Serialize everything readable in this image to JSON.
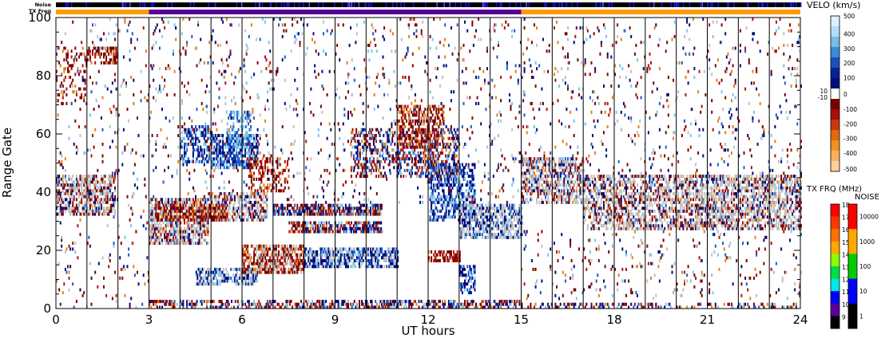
{
  "chart_data": {
    "type": "heatmap",
    "title": "",
    "xlabel": "UT hours",
    "ylabel": "Range Gate",
    "xlim": [
      0,
      24
    ],
    "ylim": [
      0,
      100
    ],
    "x_ticks": [
      0,
      3,
      6,
      9,
      12,
      15,
      18,
      21,
      24
    ],
    "x_tick_labels": [
      "0",
      "3",
      "6",
      "9",
      "12",
      "15",
      "18",
      "21",
      "24"
    ],
    "y_ticks": [
      0,
      20,
      40,
      60,
      80,
      100
    ],
    "y_tick_labels": [
      "0",
      "20",
      "40",
      "60",
      "80",
      "100"
    ],
    "vertical_gridlines_ut": [
      1,
      2,
      3,
      4,
      5,
      6,
      7,
      8,
      9,
      10,
      11,
      12,
      13,
      14,
      15,
      16,
      17,
      18,
      19,
      20,
      21,
      22,
      23
    ],
    "strip_labels": {
      "noise": "Noise",
      "tx_freq": "TX Freq"
    },
    "tx_freq_segments": [
      {
        "start": 0,
        "end": 3,
        "color": "#ff9900"
      },
      {
        "start": 3,
        "end": 15,
        "color": "#5a009a"
      },
      {
        "start": 15,
        "end": 24,
        "color": "#ff9900"
      }
    ],
    "noise_strip_color": "#000000",
    "velocity_colorbar": {
      "title": "VELO (km/s)",
      "tick_labels": [
        "500",
        "400",
        "300",
        "200",
        "100",
        "10",
        "0",
        "-10",
        "-100",
        "-200",
        "-300",
        "-400",
        "-500"
      ],
      "colors_top_to_bottom": [
        "#e0f0ff",
        "#b8dcf8",
        "#78bce8",
        "#3a8ad6",
        "#1a52b8",
        "#0a2096",
        "#00107a",
        "#ffffff",
        "#7a0000",
        "#a80e0e",
        "#c83810",
        "#e06a08",
        "#f29020",
        "#f8b060",
        "#fcd0a0"
      ]
    },
    "txfreq_colorbar": {
      "title": "TX FRQ (MHz)",
      "tick_labels": [
        "18",
        "17",
        "16",
        "15",
        "14",
        "13",
        "12",
        "11",
        "10",
        "9"
      ],
      "colors_top_to_bottom": [
        "#ff0000",
        "#ff3800",
        "#ff7000",
        "#ffa800",
        "#88ff00",
        "#00dd44",
        "#00e8e8",
        "#0000ff",
        "#5a009a",
        "#000000"
      ]
    },
    "noise_colorbar": {
      "title": "NOISE",
      "tick_labels": [
        "10000",
        "1000",
        "100",
        "10",
        "1"
      ],
      "colors_top_to_bottom": [
        "#ff0000",
        "#ffa800",
        "#00cc00",
        "#0000ff",
        "#000000"
      ]
    },
    "colors": {
      "ground_scatter": "#c0c0c0",
      "dark_blue": "#000c7c",
      "mid_blue": "#1c5cc8",
      "light_blue": "#7cc4ec",
      "dark_red": "#7a0000",
      "red": "#b01010",
      "orange": "#e08020"
    },
    "scatter_regions": [
      {
        "t0": 0.0,
        "t1": 1.9,
        "g0": 32,
        "g1": 46,
        "kind": "ground_mixed",
        "density": 0.55
      },
      {
        "t0": 1.0,
        "t1": 2.0,
        "g0": 84,
        "g1": 90,
        "kind": "red",
        "density": 0.45
      },
      {
        "t0": 0.0,
        "t1": 1.0,
        "g0": 70,
        "g1": 90,
        "kind": "red",
        "density": 0.18
      },
      {
        "t0": 3.0,
        "t1": 4.9,
        "g0": 22,
        "g1": 38,
        "kind": "ground_mixed",
        "density": 0.6
      },
      {
        "t0": 4.9,
        "t1": 6.8,
        "g0": 30,
        "g1": 40,
        "kind": "ground_mixed",
        "density": 0.55
      },
      {
        "t0": 3.2,
        "t1": 5.5,
        "g0": 30,
        "g1": 36,
        "kind": "red",
        "density": 0.5
      },
      {
        "t0": 4.0,
        "t1": 5.0,
        "g0": 50,
        "g1": 63,
        "kind": "blue",
        "density": 0.45
      },
      {
        "t0": 5.0,
        "t1": 6.5,
        "g0": 48,
        "g1": 60,
        "kind": "blue",
        "density": 0.6
      },
      {
        "t0": 5.5,
        "t1": 6.3,
        "g0": 55,
        "g1": 68,
        "kind": "light_blue",
        "density": 0.45
      },
      {
        "t0": 6.2,
        "t1": 7.5,
        "g0": 40,
        "g1": 52,
        "kind": "red",
        "density": 0.35
      },
      {
        "t0": 7.0,
        "t1": 10.5,
        "g0": 32,
        "g1": 36,
        "kind": "red_blue",
        "density": 0.7
      },
      {
        "t0": 7.5,
        "t1": 10.5,
        "g0": 26,
        "g1": 30,
        "kind": "red_blue",
        "density": 0.65
      },
      {
        "t0": 4.5,
        "t1": 6.5,
        "g0": 8,
        "g1": 14,
        "kind": "blue_gray",
        "density": 0.55
      },
      {
        "t0": 6.0,
        "t1": 8.0,
        "g0": 12,
        "g1": 22,
        "kind": "red_gray",
        "density": 0.7
      },
      {
        "t0": 8.0,
        "t1": 11.0,
        "g0": 14,
        "g1": 21,
        "kind": "blue_gray",
        "density": 0.65
      },
      {
        "t0": 9.5,
        "t1": 13.0,
        "g0": 45,
        "g1": 62,
        "kind": "red_blue",
        "density": 0.35
      },
      {
        "t0": 11.0,
        "t1": 12.5,
        "g0": 55,
        "g1": 70,
        "kind": "red",
        "density": 0.45
      },
      {
        "t0": 12.0,
        "t1": 13.5,
        "g0": 30,
        "g1": 50,
        "kind": "blue",
        "density": 0.45
      },
      {
        "t0": 13.0,
        "t1": 15.0,
        "g0": 24,
        "g1": 36,
        "kind": "ground_blue",
        "density": 0.6
      },
      {
        "t0": 12.0,
        "t1": 13.0,
        "g0": 16,
        "g1": 20,
        "kind": "red",
        "density": 0.7
      },
      {
        "t0": 13.0,
        "t1": 13.5,
        "g0": 5,
        "g1": 15,
        "kind": "blue",
        "density": 0.4
      },
      {
        "t0": 3.0,
        "t1": 15.0,
        "g0": 0,
        "g1": 3,
        "kind": "red_blue",
        "density": 0.5
      },
      {
        "t0": 15.0,
        "t1": 17.0,
        "g0": 36,
        "g1": 52,
        "kind": "ground_mixed",
        "density": 0.55
      },
      {
        "t0": 17.0,
        "t1": 24.0,
        "g0": 27,
        "g1": 46,
        "kind": "ground_mixed",
        "density": 0.55
      },
      {
        "t0": 15.0,
        "t1": 24.0,
        "g0": 0,
        "g1": 2,
        "kind": "red_blue",
        "density": 0.35
      },
      {
        "t0": 3.0,
        "t1": 15.0,
        "g0": 36,
        "g1": 100,
        "kind": "sparse",
        "density": 0.05
      },
      {
        "t0": 0.0,
        "t1": 3.0,
        "g0": 0,
        "g1": 100,
        "kind": "sparse",
        "density": 0.04
      },
      {
        "t0": 15.0,
        "t1": 24.0,
        "g0": 46,
        "g1": 100,
        "kind": "sparse",
        "density": 0.05
      },
      {
        "t0": 15.0,
        "t1": 24.0,
        "g0": 3,
        "g1": 27,
        "kind": "sparse",
        "density": 0.05
      }
    ]
  }
}
